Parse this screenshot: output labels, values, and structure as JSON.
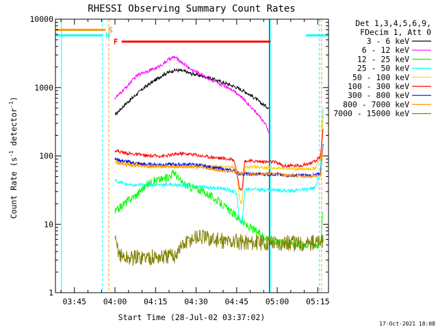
{
  "chart_data": {
    "type": "line",
    "title": "RHESSI Observing Summary Count Rates",
    "xlabel": "Start Time (28-Jul-02 03:37:02)",
    "ylabel": "Count Rate (s⁻¹ detector⁻¹)",
    "ylabel_parts": [
      "Count Rate (s",
      "-1",
      " detector",
      "-1",
      ")"
    ],
    "yscale": "log",
    "ylim": [
      1,
      10000
    ],
    "xlim_minutes": [
      -22.03,
      78.97
    ],
    "x_ticks": [
      {
        "minute": -15,
        "label": "03:45"
      },
      {
        "minute": 0,
        "label": "04:00"
      },
      {
        "minute": 15,
        "label": "04:15"
      },
      {
        "minute": 30,
        "label": "04:30"
      },
      {
        "minute": 45,
        "label": "04:45"
      },
      {
        "minute": 60,
        "label": "05:00"
      },
      {
        "minute": 75,
        "label": "05:15"
      }
    ],
    "y_ticks": [
      {
        "value": 1,
        "label": "1"
      },
      {
        "value": 10,
        "label": "10"
      },
      {
        "value": 100,
        "label": "100"
      },
      {
        "value": 1000,
        "label": "1000"
      },
      {
        "value": 10000,
        "label": "10000"
      }
    ],
    "legend": {
      "placement": "right",
      "header": [
        "Det 1,3,4,5,6,9,",
        "FDecim 1, Att 0"
      ]
    },
    "series": [
      {
        "name": "3 - 6 keV",
        "color": "#000000",
        "x": [
          0,
          2,
          4,
          6,
          8,
          10,
          12,
          14,
          16,
          18,
          20,
          22,
          24,
          26,
          28,
          30,
          32,
          34,
          36,
          38,
          40,
          42,
          44,
          46,
          48,
          50,
          52,
          54,
          56,
          57
        ],
        "y": [
          400,
          480,
          580,
          680,
          800,
          940,
          1080,
          1220,
          1380,
          1560,
          1680,
          1800,
          1780,
          1720,
          1600,
          1560,
          1480,
          1420,
          1340,
          1260,
          1180,
          1120,
          1040,
          960,
          880,
          780,
          690,
          590,
          530,
          500
        ]
      },
      {
        "name": "6 - 12 keV",
        "color": "#ff00ff",
        "x": [
          0,
          2,
          4,
          6,
          8,
          10,
          12,
          14,
          16,
          18,
          20,
          22,
          24,
          26,
          28,
          30,
          32,
          34,
          36,
          38,
          40,
          42,
          44,
          46,
          48,
          50,
          52,
          54,
          56,
          57
        ],
        "y": [
          700,
          820,
          1000,
          1220,
          1480,
          1640,
          1750,
          1850,
          2000,
          2250,
          2600,
          2800,
          2450,
          2150,
          1850,
          1700,
          1550,
          1400,
          1250,
          1150,
          1080,
          1000,
          900,
          780,
          650,
          540,
          440,
          360,
          270,
          220
        ]
      },
      {
        "name": "12 - 25 keV",
        "color": "#00ff00",
        "x": [
          0,
          2,
          4,
          6,
          8,
          10,
          12,
          14,
          16,
          18,
          20,
          22,
          24,
          26,
          28,
          30,
          32,
          34,
          36,
          38,
          40,
          42,
          44,
          46,
          47,
          48,
          50,
          52,
          54,
          56,
          58,
          60,
          62,
          64,
          66,
          68,
          70,
          72,
          74,
          76,
          77
        ],
        "y": [
          15,
          18,
          21,
          24,
          27,
          33,
          38,
          43,
          45,
          46,
          50,
          58,
          43,
          38,
          35,
          33,
          31,
          28,
          25,
          22,
          19,
          16,
          14,
          12,
          11,
          10,
          9,
          8,
          7,
          6.5,
          6,
          5.7,
          5.5,
          5.4,
          5.3,
          5.2,
          5.2,
          5.1,
          5,
          5.2,
          15
        ]
      },
      {
        "name": "25 - 50 keV",
        "color": "#00ffff",
        "x": [
          0,
          2,
          4,
          6,
          8,
          10,
          12,
          14,
          16,
          18,
          20,
          22,
          24,
          26,
          28,
          30,
          32,
          34,
          36,
          38,
          40,
          42,
          44,
          45,
          46,
          47,
          48,
          50,
          52,
          54,
          56,
          58,
          60,
          62,
          64,
          66,
          68,
          70,
          72,
          74,
          76,
          77
        ],
        "y": [
          44,
          41,
          39,
          37,
          37,
          38,
          38,
          38,
          38,
          38,
          38,
          38,
          37,
          37,
          36,
          36,
          35,
          35,
          34,
          34,
          33,
          32,
          30,
          28,
          12,
          10,
          32,
          33,
          33,
          32,
          32,
          32,
          32,
          31,
          31,
          31,
          32,
          32,
          33,
          34,
          60,
          500
        ]
      },
      {
        "name": "50 - 100 keV",
        "color": "#ffcc00",
        "x": [
          0,
          2,
          4,
          6,
          8,
          10,
          12,
          14,
          16,
          18,
          20,
          22,
          24,
          26,
          28,
          30,
          32,
          34,
          36,
          38,
          40,
          42,
          44,
          45,
          46,
          47,
          48,
          50,
          52,
          54,
          56,
          58,
          60,
          62,
          64,
          66,
          68,
          70,
          72,
          74,
          76,
          77
        ],
        "y": [
          85,
          82,
          80,
          78,
          76,
          74,
          72,
          70,
          70,
          70,
          70,
          70,
          70,
          70,
          70,
          70,
          70,
          70,
          70,
          70,
          70,
          69,
          68,
          60,
          23,
          20,
          70,
          69,
          69,
          68,
          68,
          67,
          67,
          66,
          66,
          65,
          64,
          64,
          65,
          66,
          90,
          400
        ]
      },
      {
        "name": "100 - 300 keV",
        "color": "#ff0000",
        "x": [
          0,
          2,
          4,
          6,
          8,
          10,
          12,
          14,
          16,
          18,
          20,
          22,
          24,
          26,
          28,
          30,
          32,
          34,
          36,
          38,
          40,
          42,
          44,
          45,
          46,
          47,
          48,
          50,
          52,
          54,
          56,
          58,
          60,
          62,
          64,
          66,
          68,
          70,
          72,
          74,
          76,
          77
        ],
        "y": [
          120,
          115,
          110,
          108,
          105,
          103,
          100,
          100,
          100,
          100,
          102,
          105,
          108,
          108,
          106,
          104,
          100,
          98,
          96,
          94,
          92,
          90,
          88,
          60,
          35,
          32,
          85,
          84,
          84,
          83,
          82,
          82,
          80,
          72,
          72,
          72,
          72,
          75,
          78,
          82,
          100,
          250
        ]
      },
      {
        "name": "300 - 800 keV",
        "color": "#0000ff",
        "x": [
          0,
          2,
          4,
          6,
          8,
          10,
          12,
          14,
          16,
          18,
          20,
          22,
          24,
          26,
          28,
          30,
          32,
          34,
          36,
          38,
          40,
          42,
          44,
          45,
          46,
          47,
          48,
          50,
          52,
          54,
          56,
          58,
          60,
          62,
          64,
          66,
          68,
          70,
          72,
          74,
          76,
          77
        ],
        "y": [
          90,
          86,
          83,
          80,
          78,
          76,
          75,
          75,
          75,
          75,
          75,
          75,
          75,
          75,
          75,
          74,
          72,
          70,
          68,
          66,
          64,
          62,
          61,
          58,
          55,
          55,
          55,
          54,
          54,
          54,
          54,
          54,
          54,
          52,
          52,
          52,
          52,
          52,
          52,
          52,
          55,
          150
        ]
      },
      {
        "name": "800 - 7000 keV",
        "color": "#ff9900",
        "x": [
          0,
          2,
          4,
          6,
          8,
          10,
          12,
          14,
          16,
          18,
          20,
          22,
          24,
          26,
          28,
          30,
          32,
          34,
          36,
          38,
          40,
          42,
          44,
          45,
          46,
          47,
          48,
          50,
          52,
          54,
          56,
          58,
          60,
          62,
          64,
          66,
          68,
          70,
          72,
          74,
          76,
          77
        ],
        "y": [
          80,
          78,
          76,
          74,
          72,
          71,
          70,
          70,
          70,
          70,
          70,
          70,
          70,
          70,
          70,
          69,
          68,
          66,
          64,
          62,
          61,
          60,
          59,
          57,
          56,
          56,
          56,
          55,
          55,
          55,
          55,
          55,
          55,
          53,
          52,
          52,
          51,
          50,
          50,
          50,
          52,
          140
        ]
      },
      {
        "name": "7000 - 15000 keV",
        "color": "#808000",
        "x": [
          0,
          1,
          2,
          4,
          6,
          8,
          10,
          12,
          14,
          16,
          18,
          20,
          22,
          24,
          26,
          28,
          30,
          32,
          34,
          36,
          38,
          40,
          42,
          44,
          46,
          48,
          50,
          52,
          54,
          56,
          58,
          60,
          62,
          64,
          66,
          68,
          70,
          72,
          74,
          76,
          77
        ],
        "y": [
          5.5,
          4.5,
          3.5,
          3.2,
          3.2,
          3.3,
          3.3,
          3.3,
          3.3,
          3.3,
          3.3,
          3.4,
          3.5,
          4.5,
          5.2,
          6,
          6.5,
          6.5,
          6.2,
          6,
          5.8,
          5.7,
          5.6,
          5.6,
          5.5,
          5.5,
          5.5,
          5.4,
          5.4,
          5.4,
          5.5,
          5.4,
          5.4,
          5.3,
          5.3,
          5.3,
          5.3,
          5.3,
          5.4,
          5.4,
          5.5
        ]
      }
    ],
    "annotations": [
      {
        "label": "S",
        "color": "#ff9900",
        "level": 7000,
        "x_start": -22.03,
        "x_end": -3.5
      },
      {
        "label": "N",
        "color": "#00ffff",
        "level": 5800,
        "x_start": -22.03,
        "x_end": -4.5
      },
      {
        "label": "N",
        "color": "#00ffff",
        "level": 5800,
        "x_start": 70.5,
        "x_end": 78.97
      },
      {
        "label": "F",
        "color": "#ff0000",
        "level": 4700,
        "x_start": 2.5,
        "x_end": 57.5
      }
    ],
    "vlines": [
      {
        "minute": -19.8,
        "color": "#00ffff",
        "style": "solid"
      },
      {
        "minute": -4.7,
        "color": "#00ffff",
        "style": "dashed"
      },
      {
        "minute": -2.3,
        "color": "#ff9900",
        "style": "dashed"
      },
      {
        "minute": 57.1,
        "color": "#000000",
        "style": "solid"
      },
      {
        "minute": 57.6,
        "color": "#00ffff",
        "style": "solid"
      },
      {
        "minute": 75.6,
        "color": "#00ffff",
        "style": "dashed"
      },
      {
        "minute": 76.4,
        "color": "#ff9900",
        "style": "dashed"
      }
    ],
    "footer_date": "17-Oct-2021 18:08"
  }
}
